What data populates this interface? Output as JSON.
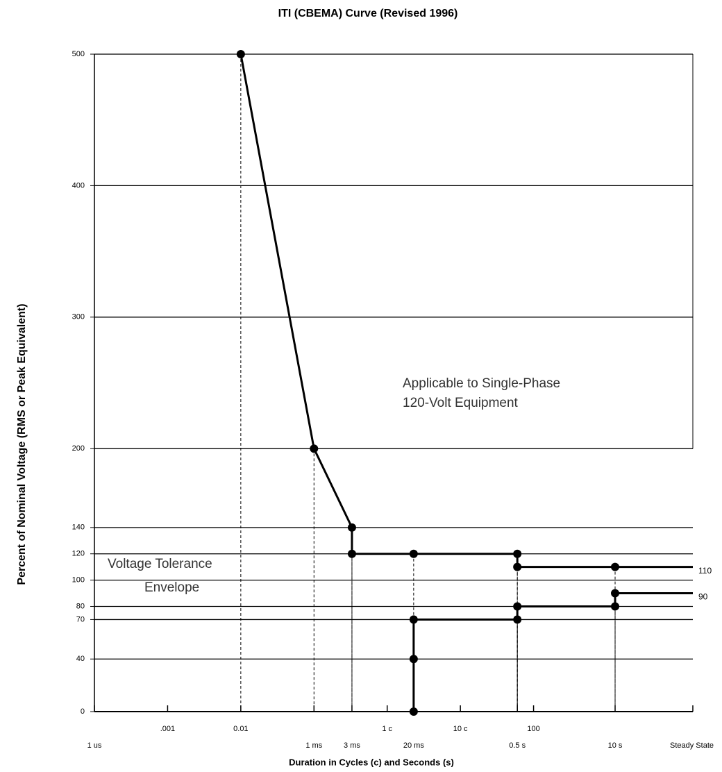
{
  "chart_data": {
    "type": "line",
    "title": "ITI (CBEMA) Curve (Revised 1996)",
    "y_label": "Percent of Nominal Voltage (RMS or Peak Equivalent)",
    "x_label": "Duration in Cycles (c) and Seconds (s)",
    "log_x": true,
    "grid": true,
    "xlim": [
      0.0001,
      15000
    ],
    "ylim": [
      0,
      500
    ],
    "yticks": [
      0,
      40,
      70,
      80,
      100,
      120,
      140,
      200,
      300,
      400,
      500
    ],
    "xticks": [
      {
        "value": 0.001,
        "label": ".001"
      },
      0.01,
      {
        "value": 1,
        "label": "1 c"
      },
      {
        "value": 10,
        "label": "10 c"
      },
      100
    ],
    "x2ticks": [
      {
        "value": 0.0001,
        "label": "1 us"
      },
      {
        "value": 0.1,
        "label": "1 ms"
      },
      {
        "value": 0.33,
        "label": "3 ms"
      },
      {
        "value": 2.3,
        "label": "20 ms"
      },
      {
        "value": 60,
        "label": "0.5 s"
      },
      {
        "value": 1300,
        "label": "10 s"
      },
      {
        "value": 15000,
        "label": "Steady State"
      }
    ],
    "series": [
      {
        "color": "#000000",
        "x": [
          0.01,
          0.1,
          0.33,
          0.33,
          2.3,
          60,
          60,
          1300,
          15000
        ],
        "values": [
          500,
          200,
          140,
          120,
          120,
          120,
          110,
          110,
          110
        ]
      },
      {
        "color": "#000000",
        "x": [
          2.3,
          2.3,
          2.3,
          60,
          60,
          1300,
          1300,
          15000
        ],
        "values": [
          0,
          40,
          70,
          70,
          80,
          80,
          90,
          90
        ]
      }
    ],
    "annotations": [
      "Applicable to Single-Phase",
      "120-Volt Equipment",
      "Voltage Tolerance",
      "Envelope"
    ]
  }
}
